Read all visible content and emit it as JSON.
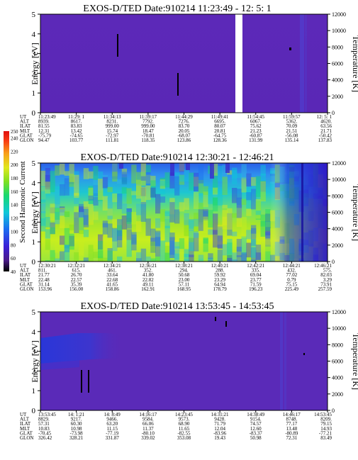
{
  "panels": [
    {
      "title": "EXOS-D/TED   Date:910214  11:23:49 - 12: 5: 1",
      "ylabel": "Energy [eV]",
      "y2label": "Temperature [K]",
      "yticks": [
        "0",
        "1",
        "2",
        "3",
        "4",
        "5"
      ],
      "y2ticks": [
        "0",
        "2000",
        "4000",
        "6000",
        "8000",
        "10000",
        "12000"
      ],
      "eph_labels": [
        "UT",
        "ALT",
        "ILAT",
        "MLT",
        "GLAT",
        "GLON"
      ],
      "eph_cols": [
        [
          "11:23:49",
          "8939.",
          "81.55",
          "12.31",
          "-75.79",
          "94.47"
        ],
        [
          "11:29: 1",
          "8617.",
          "83.83",
          "13.42",
          "-74.65",
          "103.77"
        ],
        [
          "11:34:13",
          "8231.",
          "999.00",
          "15.74",
          "-72.97",
          "111.81"
        ],
        [
          "11:39:17",
          "7792.",
          "999.00",
          "18.47",
          "-70.81",
          "118.35"
        ],
        [
          "11:44:29",
          "7276.",
          "83.70",
          "20.05",
          "-68.07",
          "123.86"
        ],
        [
          "11:49:41",
          "6695.",
          "80.07",
          "20.81",
          "-64.75",
          "128.36"
        ],
        [
          "11:54:45",
          "6067.",
          "75.62",
          "21.23",
          "-60.87",
          "131.99"
        ],
        [
          "11:59:57",
          "5362.",
          "70.09",
          "21.51",
          "-56.08",
          "135.14"
        ],
        [
          "12: 5: 1",
          "4620.",
          "63.56",
          "21.71",
          "-50.42",
          "137.83"
        ]
      ]
    },
    {
      "title": "EXOS-D/TED   Date:910214  12:30:21 - 12:46:21",
      "ylabel": "Energy [eV]",
      "y2label": "Temperature [K]",
      "yticks": [
        "0",
        "1",
        "2",
        "3",
        "4",
        "5"
      ],
      "y2ticks": [
        "0",
        "2000",
        "4000",
        "6000",
        "8000",
        "10000",
        "12000"
      ],
      "eph_labels": [
        "UT",
        "ALT",
        "ILAT",
        "MLT",
        "GLAT",
        "GLON"
      ],
      "eph_cols": [
        [
          "12:30:21",
          "811.",
          "21.77",
          "22.48",
          "31.14",
          "153.96"
        ],
        [
          "12:32:21",
          "615.",
          "26.70",
          "22.57",
          "35.39",
          "156.00"
        ],
        [
          "12:34:21",
          "461.",
          "33.64",
          "22.68",
          "41.65",
          "158.86"
        ],
        [
          "12:36:21",
          "352.",
          "41.80",
          "22.82",
          "49.11",
          "162.91"
        ],
        [
          "12:38:21",
          "294.",
          "50.68",
          "23.00",
          "57.11",
          "168.95"
        ],
        [
          "12:40:21",
          "288.",
          "59.92",
          "23.29",
          "64.94",
          "178.79"
        ],
        [
          "12:42:21",
          "335.",
          "69.04",
          "23.77",
          "71.59",
          "196.23"
        ],
        [
          "12:44:21",
          "432.",
          "77.02",
          "0.79",
          "75.15",
          "225.49"
        ],
        [
          "12:46:21",
          "575.",
          "82.03",
          "3.29",
          "73.91",
          "257.59"
        ]
      ]
    },
    {
      "title": "EXOS-D/TED   Date:910214  13:53:45 - 14:53:45",
      "ylabel": "Energy [eV]",
      "y2label": "Temperature [K]",
      "yticks": [
        "0",
        "1",
        "2",
        "3",
        "4",
        "5"
      ],
      "y2ticks": [
        "0",
        "2000",
        "4000",
        "6000",
        "8000",
        "10000",
        "12000"
      ],
      "eph_labels": [
        "UT",
        "ALT",
        "ILAT",
        "MLT",
        "GLAT",
        "GLON"
      ],
      "eph_cols": [
        [
          "13:53:45",
          "8829.",
          "57.31",
          "10.83",
          "-70.45",
          "326.42"
        ],
        [
          "14: 1:21",
          "9217.",
          "60.30",
          "10.98",
          "-73.98",
          "328.21"
        ],
        [
          "14: 8:49",
          "9466.",
          "63.20",
          "11.15",
          "-77.19",
          "331.87"
        ],
        [
          "14:16:17",
          "9584.",
          "66.06",
          "11.37",
          "-80.10",
          "339.02"
        ],
        [
          "14:23:45",
          "9573.",
          "68.90",
          "11.65",
          "-82.55",
          "353.08"
        ],
        [
          "14:31:21",
          "9428.",
          "71.79",
          "12.04",
          "-83.96",
          "19.43"
        ],
        [
          "14:38:49",
          "9154.",
          "74.57",
          "12.60",
          "-83.37",
          "50.98"
        ],
        [
          "14:46:17",
          "8748.",
          "77.17",
          "13.48",
          "-80.89",
          "72.31"
        ],
        [
          "14:53:45",
          "8209.",
          "79.15",
          "14.93",
          "-77.21",
          "83.49"
        ]
      ]
    }
  ],
  "colorbar": {
    "label": "Second Harmonic Current",
    "ticks": [
      "40",
      "60",
      "80",
      "100",
      "120",
      "140",
      "160",
      "180",
      "200",
      "220",
      "240",
      "250"
    ]
  },
  "chart_data": [
    {
      "type": "heatmap",
      "title": "EXOS-D/TED   Date:910214  11:23:49 - 12: 5: 1",
      "ylabel": "Energy [eV]",
      "y2label": "Temperature [K]",
      "ylim": [
        0,
        5
      ],
      "y2lim": [
        0,
        12000
      ],
      "x": [
        "11:23:49",
        "11:29: 1",
        "11:34:13",
        "11:39:17",
        "11:44:29",
        "11:49:41",
        "11:54:45",
        "11:59:57",
        "12: 5: 1"
      ],
      "features": [
        {
          "kind": "data gap",
          "x_range": [
            "11:51",
            "11:52"
          ]
        },
        {
          "kind": "temperature trace",
          "x": "11:32",
          "y_range": [
            2.8,
            3.9
          ]
        },
        {
          "kind": "temperature trace",
          "x": "11:42",
          "y_range": [
            0.9,
            2.0
          ]
        },
        {
          "kind": "temperature point",
          "x": "11:57",
          "y": 2.9
        }
      ]
    },
    {
      "type": "heatmap",
      "title": "EXOS-D/TED   Date:910214  12:30:21 - 12:46:21",
      "ylabel": "Energy [eV]",
      "y2label": "Temperature [K]",
      "ylim": [
        0,
        5
      ],
      "y2lim": [
        0,
        12000
      ],
      "x": [
        "12:30:21",
        "12:32:21",
        "12:34:21",
        "12:36:21",
        "12:38:21",
        "12:40:21",
        "12:42:21",
        "12:44:21",
        "12:46:21"
      ],
      "colorbar": "Second Harmonic Current",
      "clim": [
        40,
        250
      ]
    },
    {
      "type": "heatmap",
      "title": "EXOS-D/TED   Date:910214  13:53:45 - 14:53:45",
      "ylabel": "Energy [eV]",
      "y2label": "Temperature [K]",
      "ylim": [
        0,
        5
      ],
      "y2lim": [
        0,
        12000
      ],
      "x": [
        "13:53:45",
        "14: 1:21",
        "14: 8:49",
        "14:16:17",
        "14:23:45",
        "14:31:21",
        "14:38:49",
        "14:46:17",
        "14:53:45"
      ],
      "features": [
        {
          "kind": "temperature trace",
          "x": "13:59",
          "y_range": [
            0.8,
            1.9
          ]
        },
        {
          "kind": "temperature trace",
          "x": "14:00",
          "y_range": [
            0.8,
            1.9
          ]
        }
      ]
    }
  ]
}
